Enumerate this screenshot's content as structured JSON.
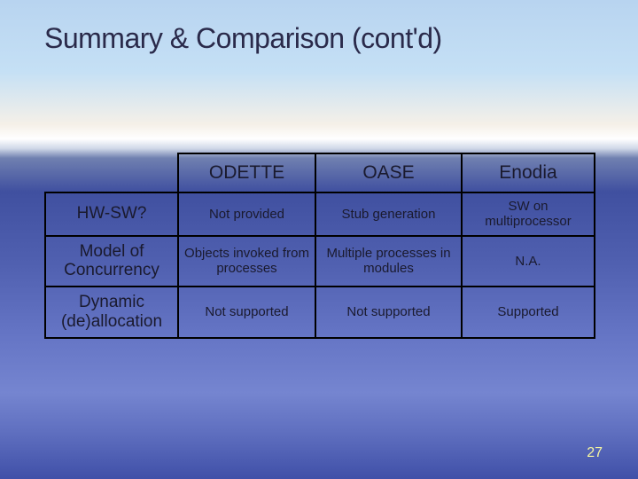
{
  "slide": {
    "title": "Summary & Comparison (cont'd)",
    "page_number": "27",
    "background": {
      "sky_top": "#b8d4f0",
      "horizon": "#ffffff",
      "water_top": "#4050a0",
      "water_mid": "#6575c5",
      "water_bottom": "#4050a8"
    },
    "table": {
      "border_color": "#000000",
      "text_color": "#1a1a2e",
      "header_fontsize": 21,
      "rowhead_fontsize": 19,
      "cell_fontsize": 15,
      "columns": [
        "",
        "ODETTE",
        "OASE",
        "Enodia"
      ],
      "rows": [
        {
          "label": "HW-SW?",
          "cells": [
            "Not provided",
            "Stub generation",
            "SW on multiprocessor"
          ]
        },
        {
          "label": "Model of Concurrency",
          "cells": [
            "Objects invoked from processes",
            "Multiple processes in modules",
            "N.A."
          ]
        },
        {
          "label": "Dynamic (de)allocation",
          "cells": [
            "Not supported",
            "Not supported",
            "Supported"
          ]
        }
      ]
    }
  }
}
